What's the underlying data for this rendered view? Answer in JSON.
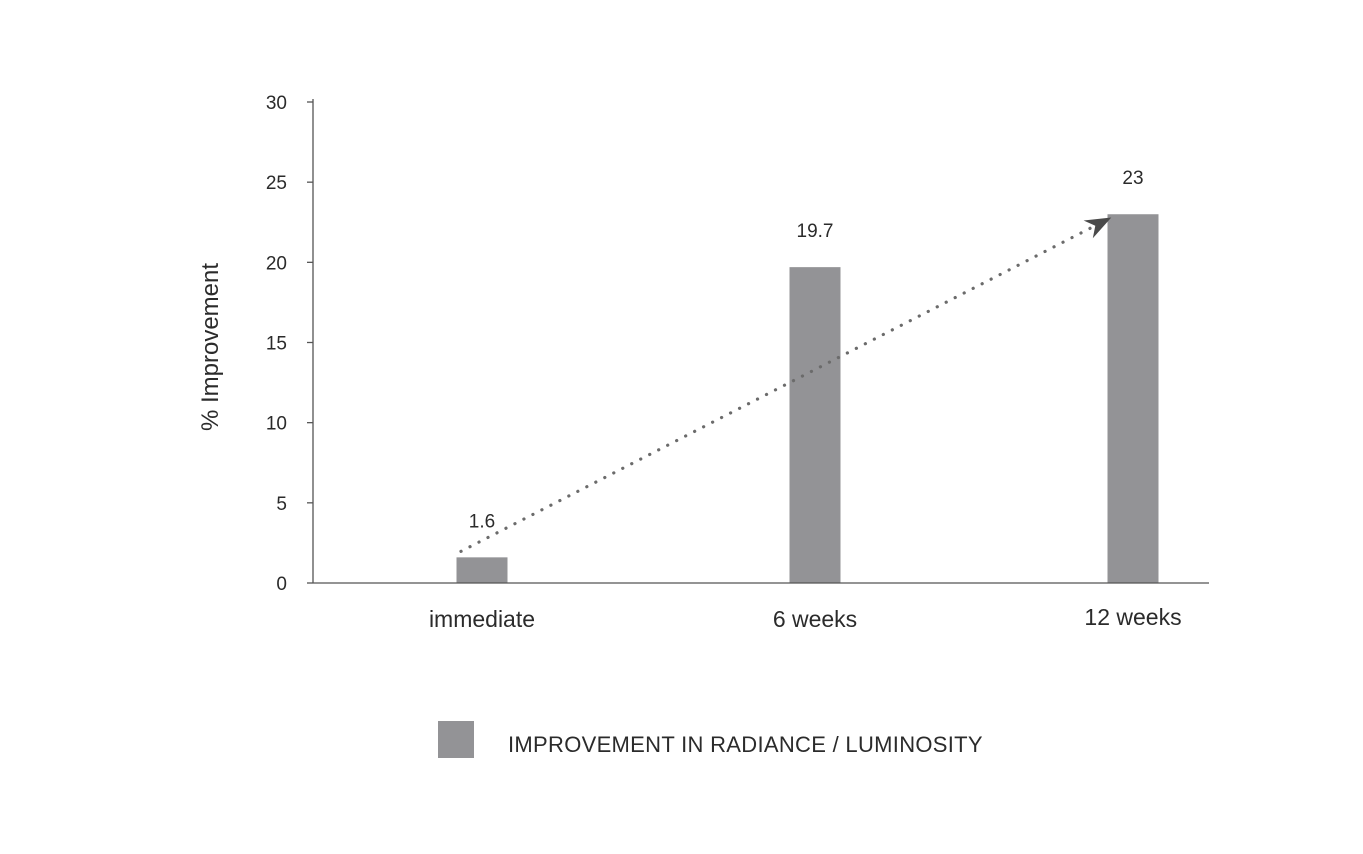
{
  "chart_data": {
    "type": "bar",
    "title": "",
    "xlabel": "",
    "ylabel": "% Improvement",
    "ylim": [
      0,
      30
    ],
    "yticks": [
      0,
      5,
      10,
      15,
      20,
      25,
      30
    ],
    "grid": false,
    "categories": [
      "immediate",
      "6 weeks",
      "12 weeks"
    ],
    "series": [
      {
        "name": "IMPROVEMENT IN RADIANCE / LUMINOSITY",
        "values": [
          1.6,
          19.7,
          23
        ],
        "data_labels": [
          "1.6",
          "19.7",
          "23"
        ],
        "color": "#939396"
      }
    ],
    "trend_arrow": {
      "style": "dotted",
      "from_category": "immediate",
      "to_category": "12 weeks",
      "color": "#6b6b6b"
    },
    "legend": {
      "placement": "bottom-center",
      "entries": [
        "IMPROVEMENT IN RADIANCE / LUMINOSITY"
      ]
    },
    "colors": {
      "bar": "#939396",
      "axis": "#555555",
      "text": "#2b2b2b",
      "trend": "#6b6b6b"
    }
  }
}
